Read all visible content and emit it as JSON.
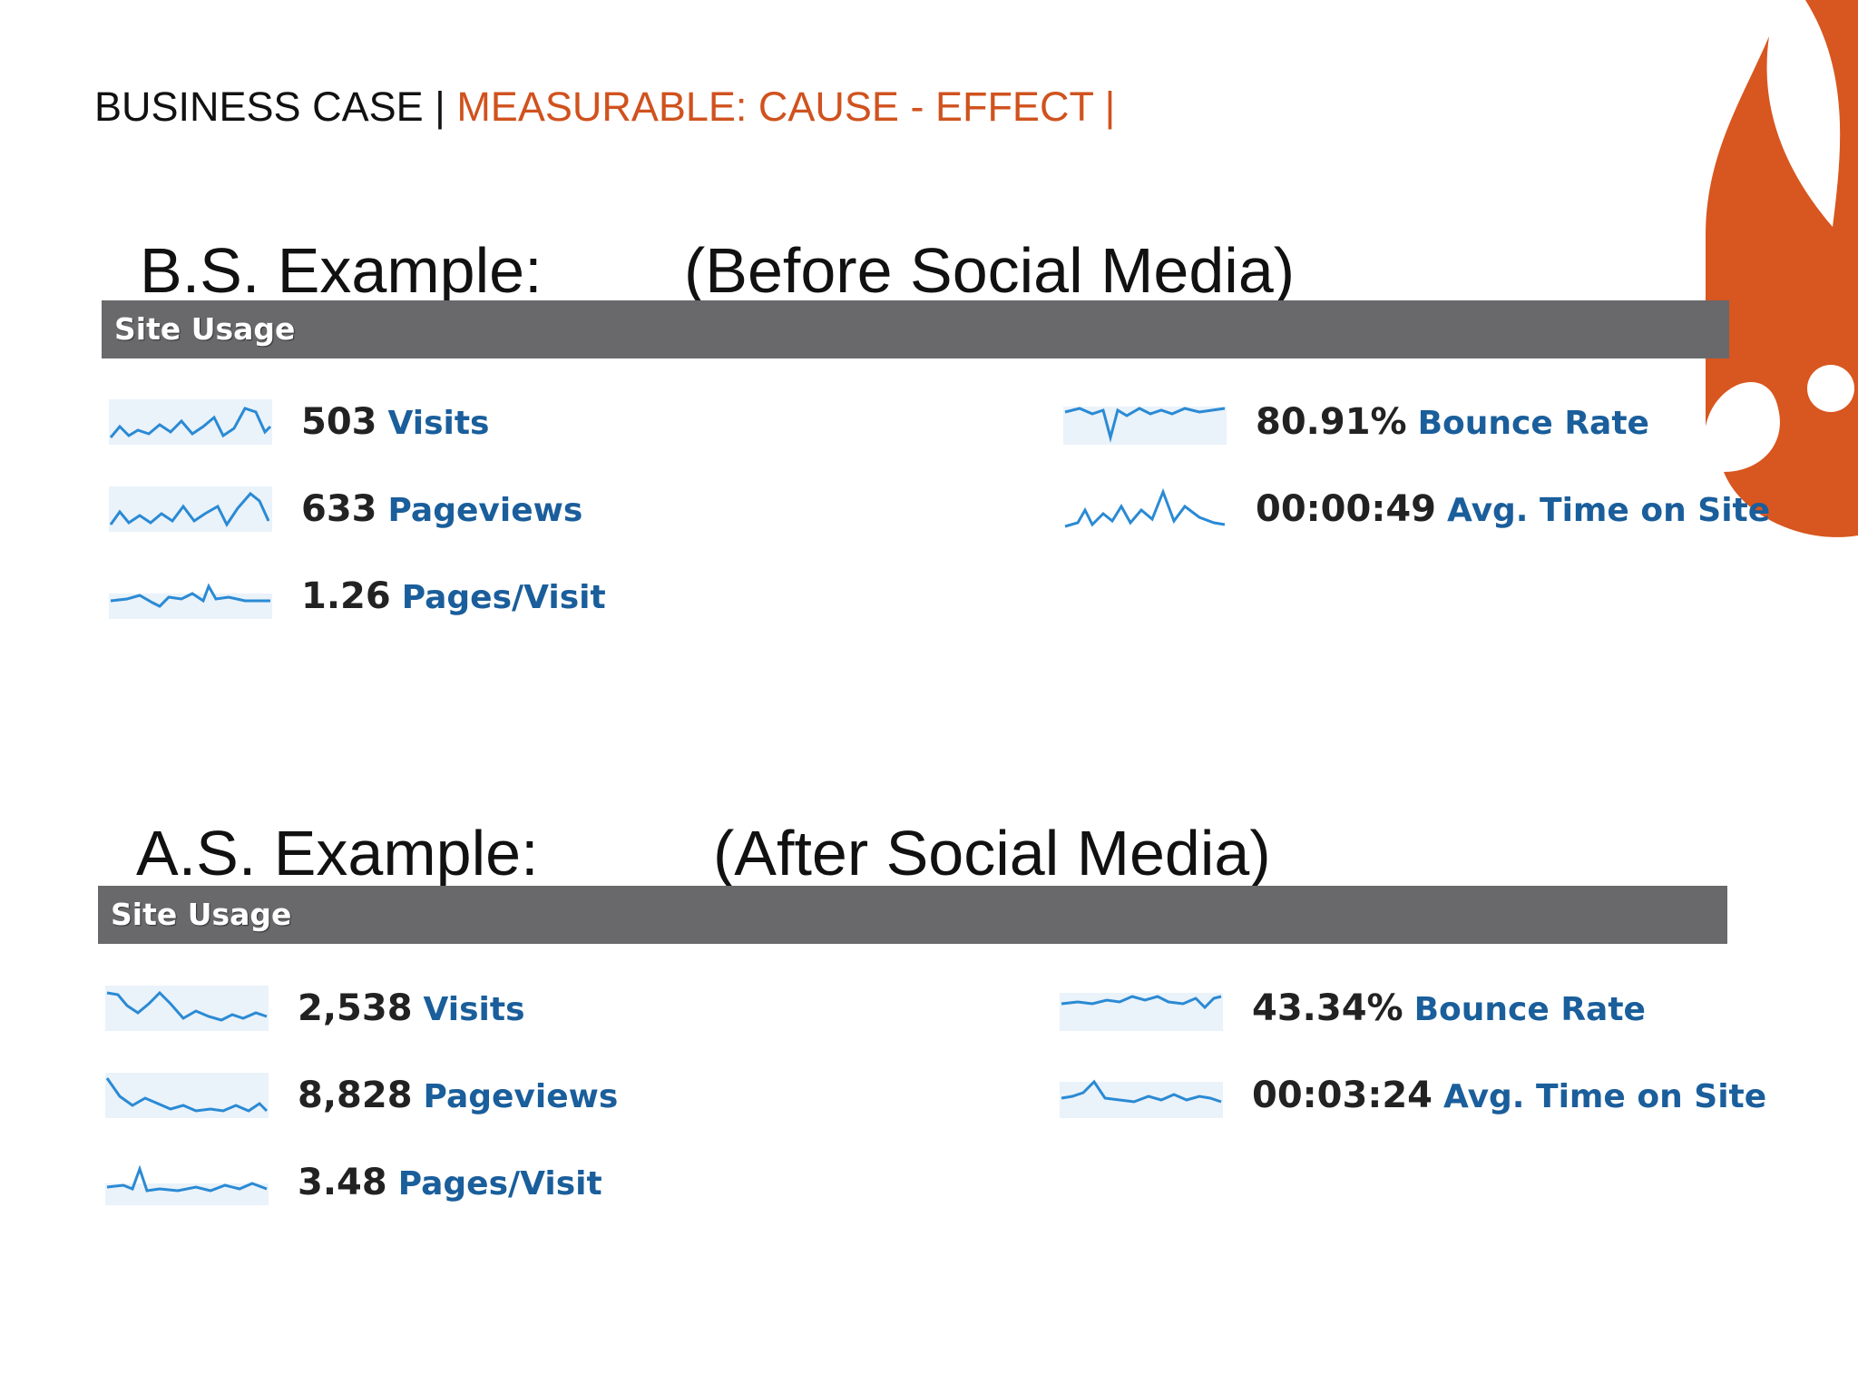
{
  "header": {
    "prefix": "BUSINESS CASE | ",
    "accent": "MEASURABLE: CAUSE - EFFECT |"
  },
  "sections": [
    {
      "title": "B.S. Example:",
      "subtitle": "(Before Social Media)",
      "bar_label": "Site Usage",
      "metrics": [
        {
          "value": "503",
          "label": "Visits"
        },
        {
          "value": "633",
          "label": "Pageviews"
        },
        {
          "value": "1.26",
          "label": "Pages/Visit"
        },
        {
          "value": "80.91%",
          "label": "Bounce Rate"
        },
        {
          "value": "00:00:49",
          "label": "Avg. Time on Site"
        }
      ]
    },
    {
      "title": "A.S. Example:",
      "subtitle": "(After Social Media)",
      "bar_label": "Site Usage",
      "metrics": [
        {
          "value": "2,538",
          "label": "Visits"
        },
        {
          "value": "8,828",
          "label": "Pageviews"
        },
        {
          "value": "3.48",
          "label": "Pages/Visit"
        },
        {
          "value": "43.34%",
          "label": "Bounce Rate"
        },
        {
          "value": "00:03:24",
          "label": "Avg. Time on Site"
        }
      ]
    }
  ],
  "colors": {
    "accent": "#d0521e",
    "bar": "#69686b",
    "metric_label": "#1a5e9b",
    "sparkline": "#2a8ad4"
  }
}
